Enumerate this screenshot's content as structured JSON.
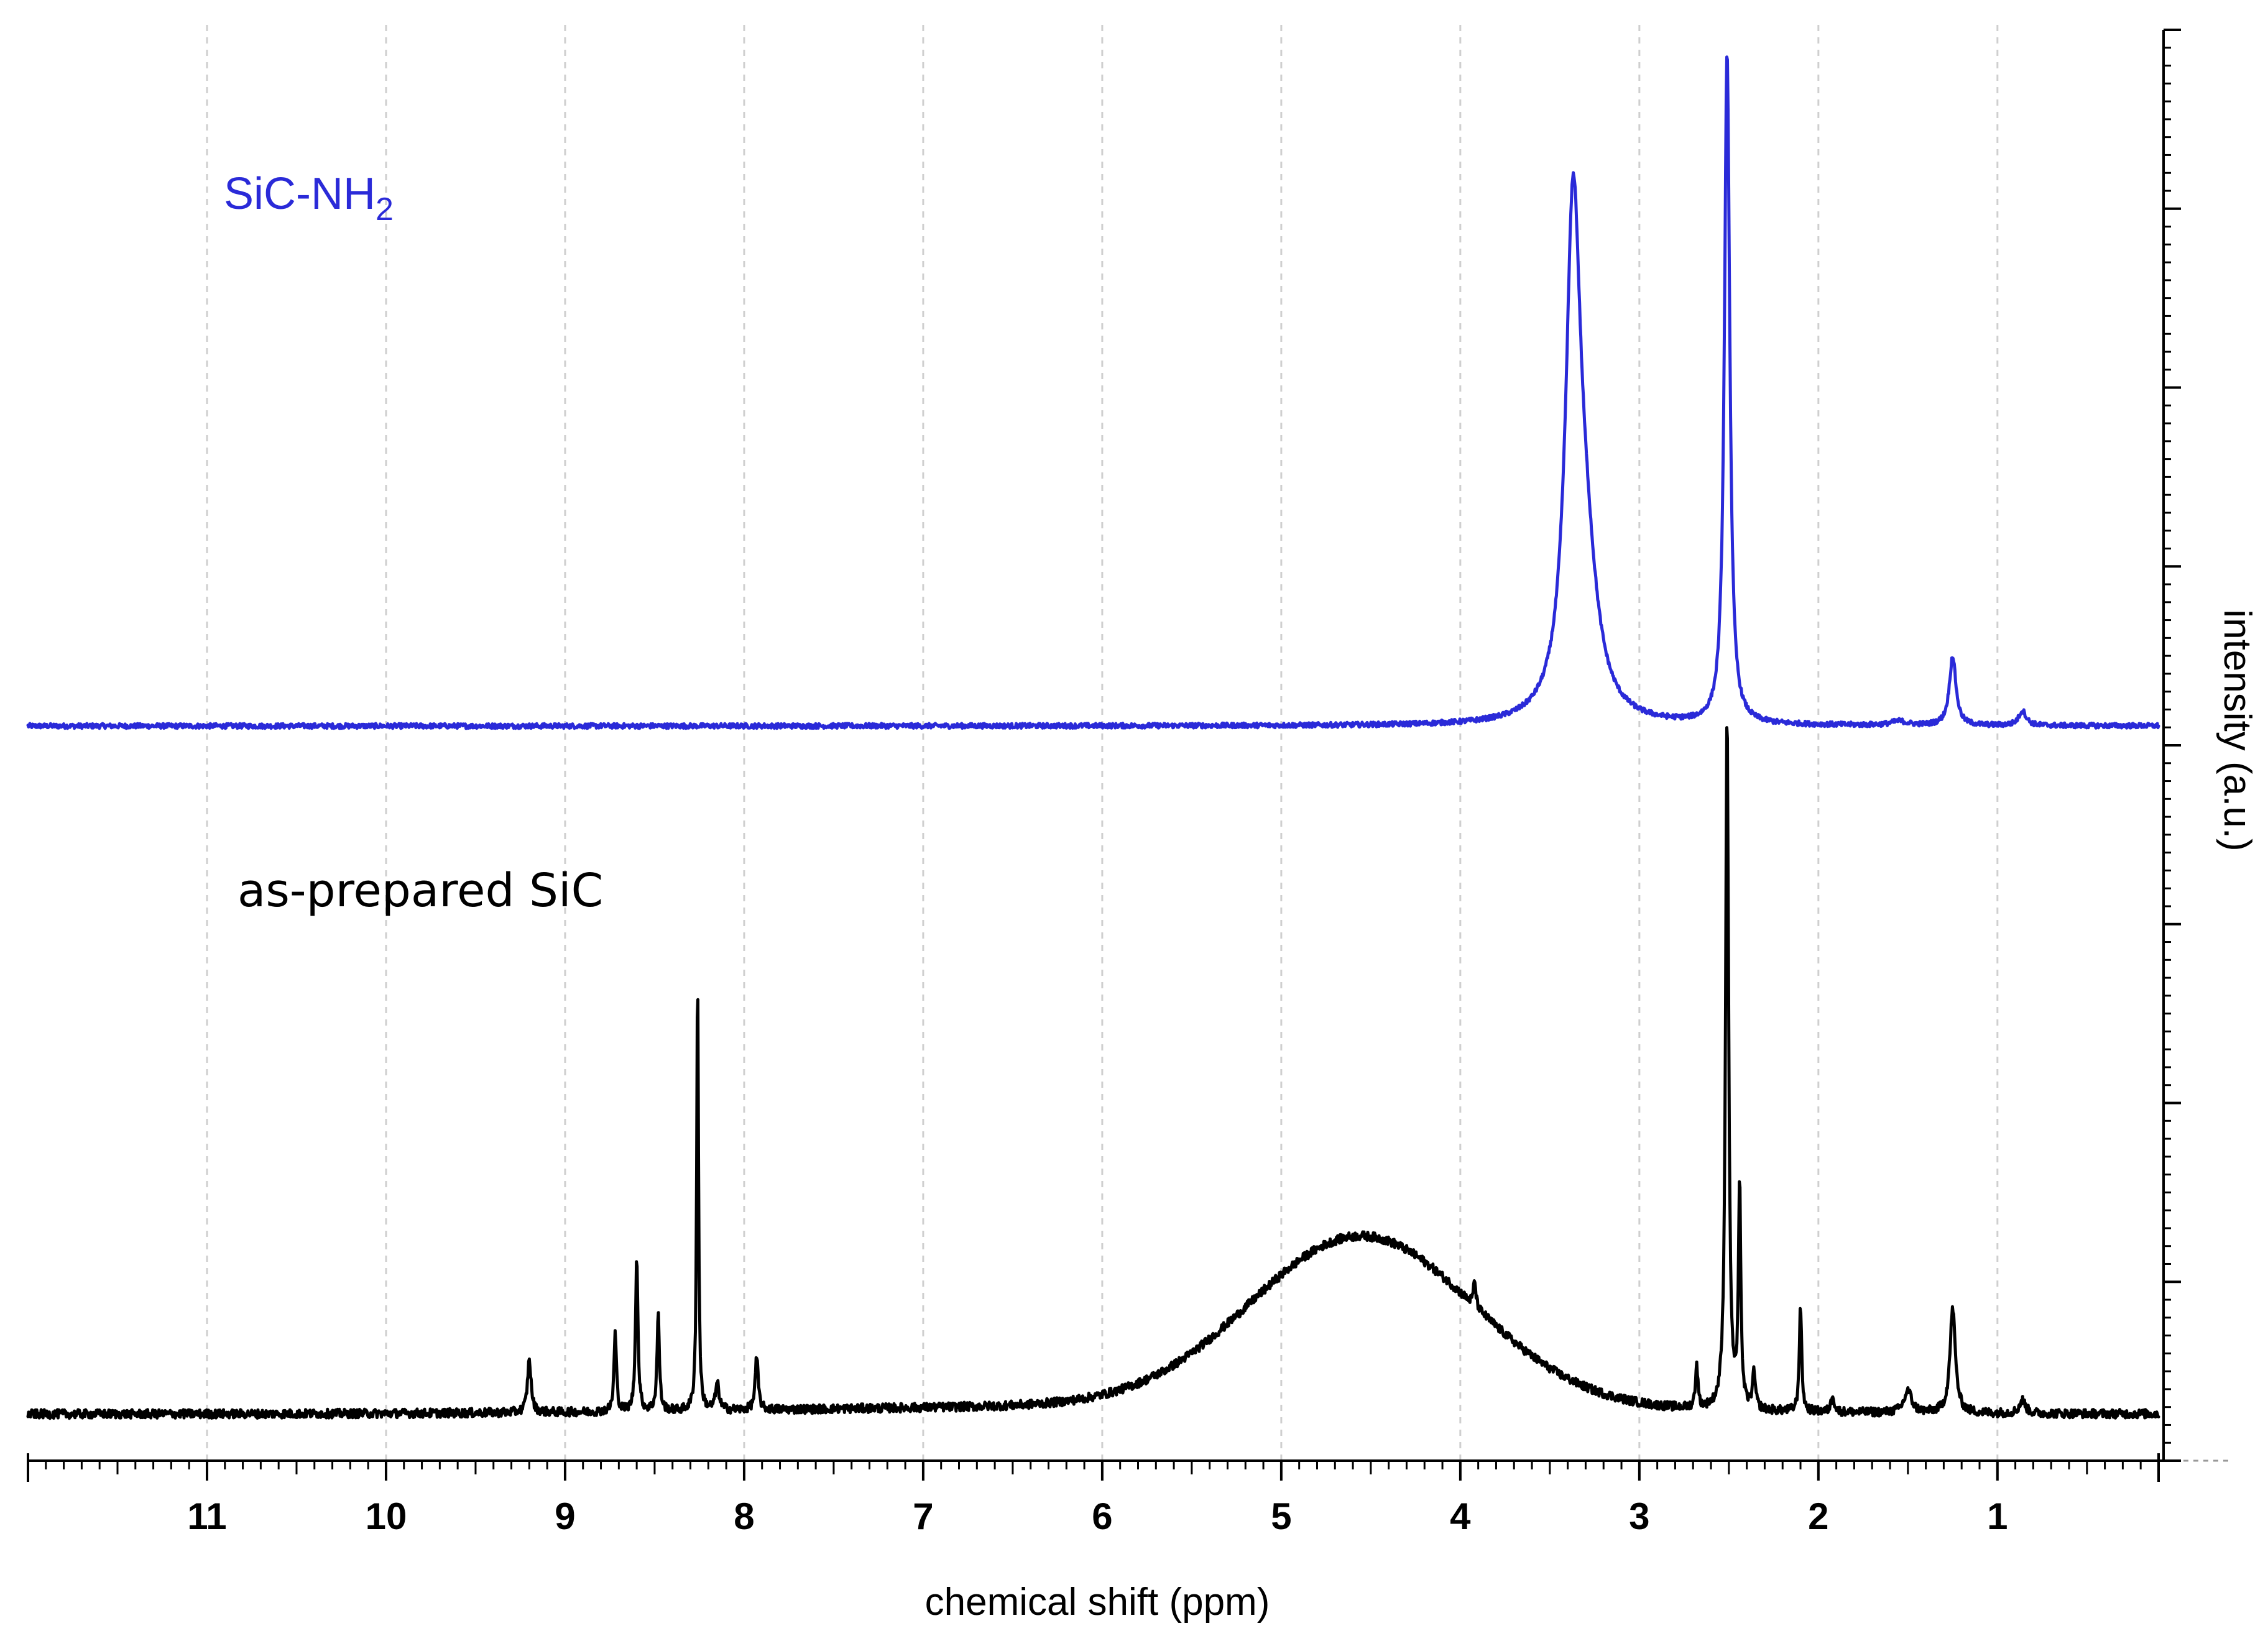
{
  "chart_data": {
    "type": "line",
    "title": "",
    "xlabel": "chemical shift (ppm)",
    "ylabel": "intensity (a.u.)",
    "xlim": [
      12,
      0.1
    ],
    "x_reversed": true,
    "x_ticks": [
      11,
      10,
      9,
      8,
      7,
      6,
      5,
      4,
      3,
      2,
      1
    ],
    "grid": "vertical dashed at integer ppm",
    "legend": "none (inline labels)",
    "series": [
      {
        "name": "SiC-NH2",
        "label_main": "SiC-NH",
        "label_sub": "2",
        "color": "#2a2ad8",
        "baseline": 0,
        "noise": 0.003,
        "peaks": [
          {
            "x": 3.37,
            "height": 0.59,
            "width": 0.05
          },
          {
            "x": 3.3,
            "height": 0.15,
            "width": 0.08
          },
          {
            "x": 2.51,
            "height": 0.82,
            "width": 0.018
          },
          {
            "x": 1.25,
            "height": 0.085,
            "width": 0.022
          },
          {
            "x": 0.86,
            "height": 0.018,
            "width": 0.025
          },
          {
            "x": 1.55,
            "height": 0.005,
            "width": 0.05
          }
        ]
      },
      {
        "name": "as-prepared SiC",
        "label_main": "as-prepared SiC",
        "color": "#000000",
        "baseline": 0,
        "noise": 0.005,
        "broad": {
          "x": 4.55,
          "height": 0.195,
          "sigma": 0.62,
          "offset": 0.01
        },
        "peaks": [
          {
            "x": 9.2,
            "height": 0.06,
            "width": 0.012
          },
          {
            "x": 8.72,
            "height": 0.09,
            "width": 0.008
          },
          {
            "x": 8.6,
            "height": 0.18,
            "width": 0.008
          },
          {
            "x": 8.48,
            "height": 0.11,
            "width": 0.008
          },
          {
            "x": 8.26,
            "height": 0.5,
            "width": 0.006
          },
          {
            "x": 7.93,
            "height": 0.06,
            "width": 0.01
          },
          {
            "x": 8.15,
            "height": 0.03,
            "width": 0.012
          },
          {
            "x": 2.68,
            "height": 0.05,
            "width": 0.008
          },
          {
            "x": 2.51,
            "height": 0.8,
            "width": 0.01
          },
          {
            "x": 2.44,
            "height": 0.25,
            "width": 0.008
          },
          {
            "x": 2.36,
            "height": 0.04,
            "width": 0.01
          },
          {
            "x": 2.1,
            "height": 0.12,
            "width": 0.008
          },
          {
            "x": 1.92,
            "height": 0.02,
            "width": 0.01
          },
          {
            "x": 1.5,
            "height": 0.025,
            "width": 0.025
          },
          {
            "x": 1.25,
            "height": 0.12,
            "width": 0.018
          },
          {
            "x": 0.86,
            "height": 0.015,
            "width": 0.02
          },
          {
            "x": 3.92,
            "height": 0.03,
            "width": 0.008
          }
        ]
      }
    ]
  }
}
